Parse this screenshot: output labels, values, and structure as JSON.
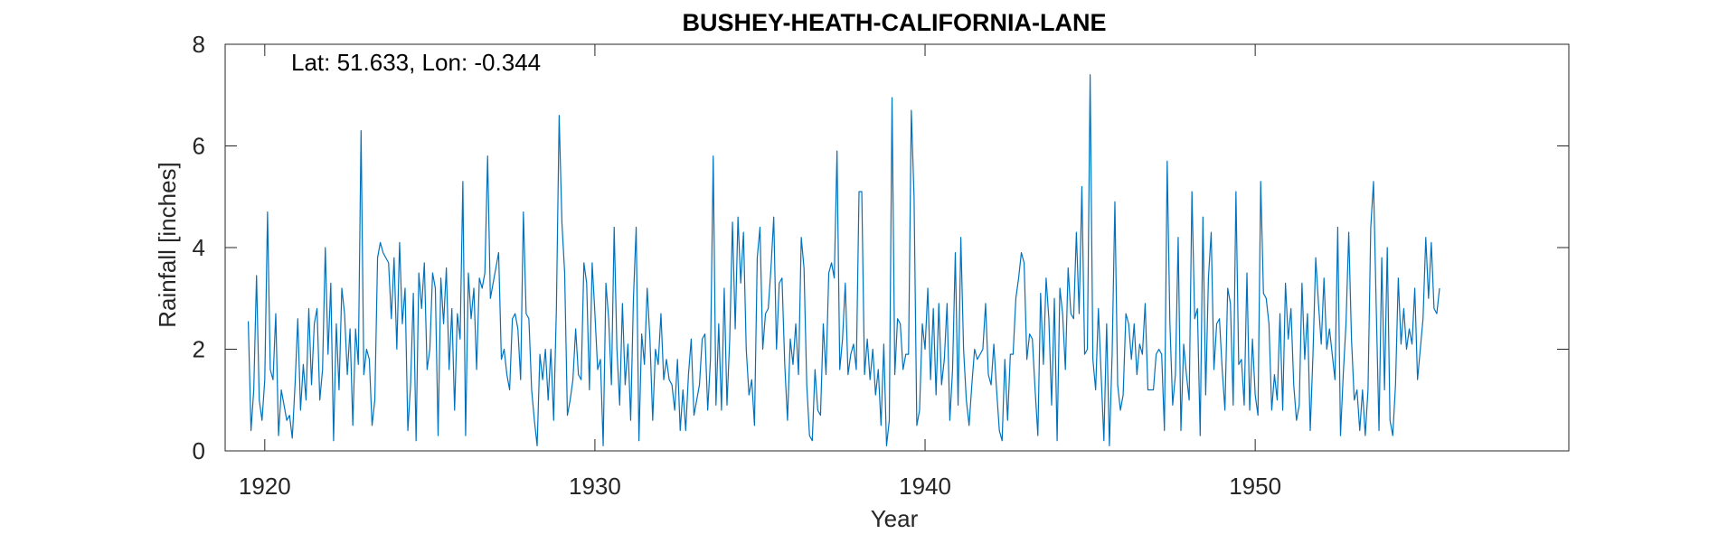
{
  "chart_data": {
    "type": "line",
    "title": "BUSHEY-HEATH-CALIFORNIA-LANE",
    "annotation": "Lat: 51.633, Lon: -0.344",
    "xlabel": "Year",
    "ylabel": "Rainfall [inches]",
    "xlim": [
      1918.8,
      1959.5
    ],
    "ylim": [
      0,
      8
    ],
    "xticks": [
      1920,
      1930,
      1940,
      1950
    ],
    "yticks": [
      0,
      2,
      4,
      6,
      8
    ],
    "grid": false,
    "color": "#0072BD",
    "series": [
      {
        "name": "",
        "x_start": 1919.5,
        "step": 0.08333333,
        "values": [
          2.55,
          0.4,
          1.2,
          3.45,
          1.0,
          0.6,
          1.4,
          4.7,
          1.6,
          1.4,
          2.7,
          0.3,
          1.2,
          0.9,
          0.6,
          0.7,
          0.25,
          1.3,
          2.6,
          0.8,
          1.7,
          1.0,
          2.8,
          1.3,
          2.5,
          2.8,
          1.0,
          1.6,
          4.0,
          1.9,
          3.3,
          0.2,
          2.5,
          1.2,
          3.2,
          2.7,
          1.5,
          2.4,
          0.5,
          2.4,
          1.7,
          6.3,
          1.5,
          2.0,
          1.8,
          0.5,
          1.0,
          3.8,
          4.1,
          3.9,
          3.8,
          3.7,
          2.6,
          3.8,
          2.0,
          4.1,
          2.5,
          3.2,
          0.4,
          1.3,
          3.1,
          0.2,
          3.5,
          2.8,
          3.7,
          1.6,
          2.0,
          3.5,
          3.2,
          0.3,
          3.4,
          2.5,
          3.6,
          1.6,
          2.8,
          0.8,
          2.7,
          2.2,
          5.3,
          0.3,
          3.5,
          2.6,
          3.2,
          1.6,
          3.4,
          3.2,
          3.5,
          5.8,
          3.0,
          3.3,
          3.6,
          3.9,
          1.8,
          2.0,
          1.5,
          1.2,
          2.6,
          2.7,
          2.4,
          1.4,
          4.7,
          2.7,
          2.6,
          1.2,
          0.6,
          0.1,
          1.9,
          1.4,
          2.0,
          1.0,
          2.0,
          0.6,
          2.8,
          6.6,
          4.5,
          3.5,
          0.7,
          1.0,
          1.4,
          2.4,
          1.5,
          1.4,
          3.7,
          3.3,
          1.2,
          3.7,
          2.7,
          1.6,
          1.8,
          0.1,
          3.3,
          2.6,
          1.3,
          4.4,
          2.0,
          0.9,
          2.9,
          1.3,
          2.1,
          0.6,
          3.0,
          4.4,
          0.2,
          2.3,
          1.7,
          3.2,
          2.2,
          0.6,
          2.0,
          1.7,
          2.7,
          1.4,
          1.8,
          1.4,
          1.3,
          0.8,
          1.8,
          0.4,
          1.2,
          0.4,
          1.5,
          2.2,
          0.7,
          1.0,
          1.3,
          2.2,
          2.3,
          0.8,
          1.8,
          5.8,
          0.9,
          2.5,
          0.8,
          3.2,
          0.9,
          2.2,
          4.5,
          2.4,
          4.6,
          3.3,
          4.3,
          2.0,
          1.1,
          1.4,
          0.5,
          3.8,
          4.4,
          2.0,
          2.7,
          2.8,
          3.6,
          4.6,
          2.0,
          3.3,
          3.4,
          1.7,
          0.6,
          2.2,
          1.7,
          2.5,
          1.5,
          4.2,
          3.6,
          1.3,
          0.3,
          0.2,
          1.6,
          0.8,
          0.7,
          2.5,
          1.5,
          3.5,
          3.7,
          3.4,
          5.9,
          1.6,
          2.2,
          3.3,
          1.5,
          1.9,
          2.1,
          1.6,
          5.1,
          5.1,
          1.5,
          2.2,
          1.4,
          2.0,
          1.1,
          1.6,
          0.5,
          2.1,
          0.1,
          0.6,
          6.95,
          1.5,
          2.6,
          2.5,
          1.6,
          1.9,
          1.9,
          6.7,
          5.0,
          0.5,
          0.8,
          2.5,
          2.0,
          3.2,
          1.4,
          2.8,
          1.1,
          2.9,
          1.3,
          1.8,
          2.9,
          0.6,
          1.6,
          3.9,
          0.9,
          4.2,
          2.0,
          1.0,
          0.5,
          1.3,
          2.0,
          1.8,
          1.9,
          2.0,
          2.9,
          1.5,
          1.3,
          2.1,
          1.2,
          0.4,
          0.2,
          1.8,
          0.6,
          1.9,
          1.9,
          3.0,
          3.4,
          3.9,
          3.7,
          1.8,
          2.3,
          2.2,
          1.2,
          0.3,
          3.1,
          1.7,
          3.4,
          2.6,
          0.9,
          3.0,
          0.2,
          3.2,
          2.7,
          1.6,
          3.6,
          2.7,
          2.6,
          4.3,
          2.7,
          5.2,
          1.9,
          2.0,
          7.4,
          1.8,
          1.2,
          2.8,
          1.5,
          0.2,
          2.5,
          0.1,
          1.9,
          4.9,
          1.3,
          0.8,
          1.1,
          2.7,
          2.5,
          1.8,
          2.5,
          1.5,
          2.1,
          1.9,
          2.9,
          1.2,
          1.2,
          1.2,
          1.9,
          2.0,
          1.9,
          0.4,
          5.7,
          2.5,
          0.9,
          1.5,
          4.2,
          0.4,
          2.1,
          1.5,
          1.0,
          5.1,
          2.6,
          2.8,
          0.3,
          4.6,
          1.1,
          3.4,
          4.3,
          1.6,
          2.5,
          2.6,
          1.6,
          0.8,
          3.2,
          2.9,
          0.9,
          5.1,
          1.7,
          1.8,
          0.9,
          3.5,
          0.8,
          2.2,
          1.1,
          0.7,
          5.3,
          3.1,
          3.0,
          2.5,
          0.8,
          1.5,
          1.0,
          2.7,
          0.8,
          3.3,
          2.2,
          2.8,
          1.3,
          0.6,
          0.9,
          3.3,
          1.8,
          2.7,
          0.4,
          1.9,
          3.8,
          2.9,
          2.1,
          3.4,
          2.0,
          2.4,
          1.9,
          1.4,
          4.4,
          0.3,
          1.5,
          2.5,
          4.3,
          2.2,
          1.0,
          1.2,
          0.4,
          1.2,
          0.3,
          1.2,
          4.4,
          5.3,
          2.8,
          0.4,
          3.8,
          1.2,
          4.0,
          0.6,
          0.3,
          1.3,
          3.4,
          2.1,
          2.8,
          2.0,
          2.4,
          2.1,
          3.2,
          1.4,
          2.0,
          2.6,
          4.2,
          3.0,
          4.1,
          2.8,
          2.7,
          3.2
        ]
      }
    ]
  }
}
